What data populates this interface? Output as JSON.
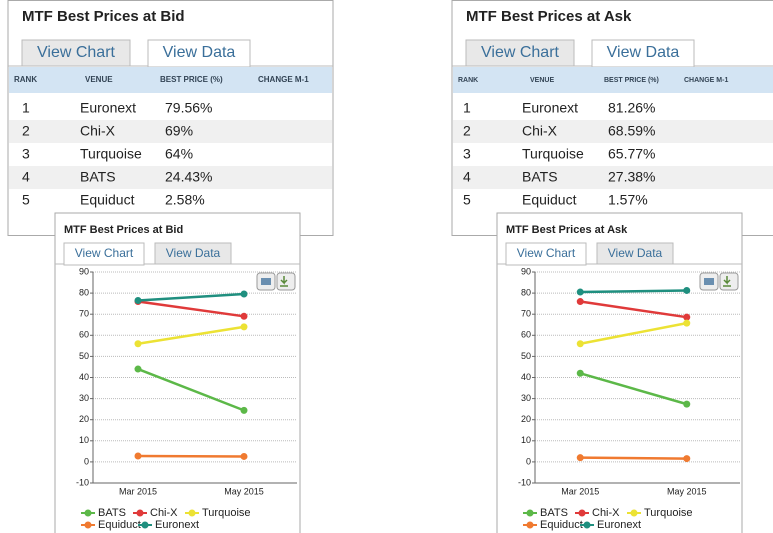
{
  "panels": [
    {
      "title": "MTF Best Prices at Bid",
      "tabs": [
        "View Chart",
        "View Data"
      ],
      "table": {
        "headers": [
          "RANK",
          "VENUE",
          "BEST PRICE (%)",
          "CHANGE M-1"
        ],
        "rows": [
          [
            "1",
            "Euronext",
            "79.56%"
          ],
          [
            "2",
            "Chi-X",
            "69%"
          ],
          [
            "3",
            "Turquoise",
            "64%"
          ],
          [
            "4",
            "BATS",
            "24.43%"
          ],
          [
            "5",
            "Equiduct",
            "2.58%"
          ]
        ]
      }
    },
    {
      "title": "MTF Best Prices at Ask",
      "tabs": [
        "View Chart",
        "View Data"
      ],
      "table": {
        "headers": [
          "RANK",
          "VENUE",
          "BEST PRICE (%)",
          "CHANGE M-1"
        ],
        "rows": [
          [
            "1",
            "Euronext",
            "81.26%"
          ],
          [
            "2",
            "Chi-X",
            "68.59%"
          ],
          [
            "3",
            "Turquoise",
            "65.77%"
          ],
          [
            "4",
            "BATS",
            "27.38%"
          ],
          [
            "5",
            "Equiduct",
            "1.57%"
          ]
        ]
      }
    }
  ],
  "chart_data": [
    {
      "type": "line",
      "title": "MTF Best Prices at Bid",
      "tabs": [
        "View Chart",
        "View Data"
      ],
      "categories": [
        "Mar 2015",
        "May 2015"
      ],
      "ylim": [
        -10,
        90
      ],
      "yticks": [
        -10,
        0,
        10,
        20,
        30,
        40,
        50,
        60,
        70,
        80,
        90
      ],
      "grid": true,
      "series": [
        {
          "name": "BATS",
          "color": "#5cb848",
          "values": [
            44,
            24.43
          ]
        },
        {
          "name": "Chi-X",
          "color": "#e03a3a",
          "values": [
            76,
            69
          ]
        },
        {
          "name": "Turquoise",
          "color": "#ece234",
          "values": [
            56,
            64
          ]
        },
        {
          "name": "Equiduct",
          "color": "#f07a30",
          "values": [
            2.8,
            2.58
          ]
        },
        {
          "name": "Euronext",
          "color": "#1f8f7f",
          "values": [
            76.5,
            79.56
          ]
        }
      ]
    },
    {
      "type": "line",
      "title": "MTF Best Prices at Ask",
      "tabs": [
        "View Chart",
        "View Data"
      ],
      "categories": [
        "Mar 2015",
        "May 2015"
      ],
      "ylim": [
        -10,
        90
      ],
      "yticks": [
        -10,
        0,
        10,
        20,
        30,
        40,
        50,
        60,
        70,
        80,
        90
      ],
      "grid": true,
      "series": [
        {
          "name": "BATS",
          "color": "#5cb848",
          "values": [
            42,
            27.38
          ]
        },
        {
          "name": "Chi-X",
          "color": "#e03a3a",
          "values": [
            76,
            68.59
          ]
        },
        {
          "name": "Turquoise",
          "color": "#ece234",
          "values": [
            56,
            65.77
          ]
        },
        {
          "name": "Equiduct",
          "color": "#f07a30",
          "values": [
            2,
            1.57
          ]
        },
        {
          "name": "Euronext",
          "color": "#1f8f7f",
          "values": [
            80.5,
            81.26
          ]
        }
      ]
    }
  ]
}
